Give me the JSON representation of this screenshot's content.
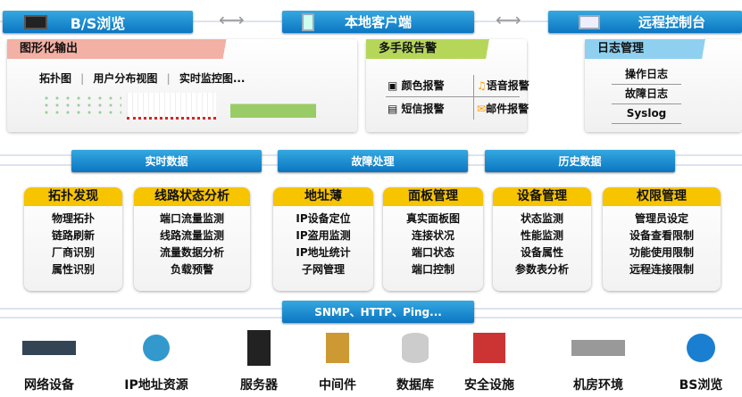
{
  "top_nav": [
    {
      "label": "B/S浏览",
      "icon": "browser-screen-icon"
    },
    {
      "label": "本地客户端",
      "icon": "monitor-icon"
    },
    {
      "label": "远程控制台",
      "icon": "remote-laptop-icon"
    }
  ],
  "graphics_panel": {
    "title": "图形化输出",
    "items": [
      "拓扑图",
      "用户分布视图",
      "实时监控图..."
    ]
  },
  "alarm_panel": {
    "title": "多手段告警",
    "items": [
      "颜色报警",
      "语音报警",
      "短信报警",
      "邮件报警"
    ]
  },
  "log_panel": {
    "title": "日志管理",
    "items": [
      "操作日志",
      "故障日志",
      "Syslog"
    ]
  },
  "middle_buttons": [
    "实时数据",
    "故障处理",
    "历史数据"
  ],
  "modules": [
    {
      "title": "拓扑发现",
      "items": [
        "物理拓扑",
        "链路刷新",
        "厂商识别",
        "属性识别"
      ]
    },
    {
      "title": "线路状态分析",
      "items": [
        "端口流量监测",
        "线路流量监测",
        "流量数据分析",
        "负载预警"
      ]
    },
    {
      "title": "地址薄",
      "items": [
        "IP设备定位",
        "IP盗用监测",
        "IP地址统计",
        "子网管理"
      ]
    },
    {
      "title": "面板管理",
      "items": [
        "真实面板图",
        "连接状况",
        "端口状态",
        "端口控制"
      ]
    },
    {
      "title": "设备管理",
      "items": [
        "状态监测",
        "性能监测",
        "设备属性",
        "参数表分析"
      ]
    },
    {
      "title": "权限管理",
      "items": [
        "管理员设定",
        "设备查看限制",
        "功能使用限制",
        "远程连接限制"
      ]
    }
  ],
  "protocol_button": "SNMP、HTTP、Ping...",
  "resources": [
    "网络设备",
    "IP地址资源",
    "服务器",
    "中间件",
    "数据库",
    "安全设施",
    "机房环境",
    "BS浏览"
  ],
  "colors": {
    "blue": "#0b76c2",
    "yellow": "#f7c400",
    "pink": "#f3b0a4",
    "green": "#b6d65a",
    "lightblue": "#8fd0f0"
  }
}
